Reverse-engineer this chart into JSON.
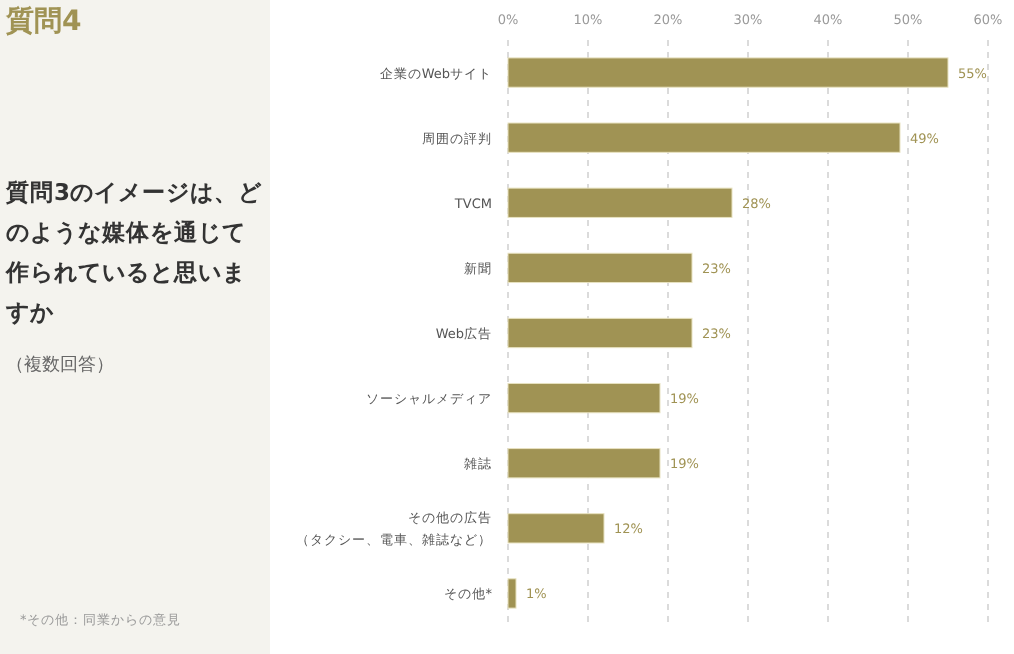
{
  "chart_data": {
    "type": "bar",
    "orientation": "horizontal",
    "title": "質問3のイメージは、どのような媒体を通じて作られていると思いますか",
    "subtitle": "（複数回答）",
    "annotations": [
      "質問4",
      "*その他：同業からの意見"
    ],
    "categories": [
      "企業のWebサイト",
      "周囲の評判",
      "TVCM",
      "新聞",
      "Web広告",
      "ソーシャルメディア",
      "雑誌",
      "その他の広告（タクシー、電車、雑誌など）",
      "その他*"
    ],
    "values": [
      55,
      49,
      28,
      23,
      23,
      19,
      19,
      12,
      1
    ],
    "value_labels": [
      "55%",
      "49%",
      "28%",
      "23%",
      "23%",
      "19%",
      "19%",
      "12%",
      "1%"
    ],
    "color": "#a09354",
    "xlim": [
      0,
      60
    ],
    "xticks": [
      {
        "value": 0,
        "label": "0%"
      },
      {
        "value": 10,
        "label": "10%"
      },
      {
        "value": 20,
        "label": "20%"
      },
      {
        "value": 30,
        "label": "30%"
      },
      {
        "value": 40,
        "label": "40%"
      },
      {
        "value": 50,
        "label": "50%"
      },
      {
        "value": 60,
        "label": "60%"
      }
    ],
    "grid": "x"
  }
}
